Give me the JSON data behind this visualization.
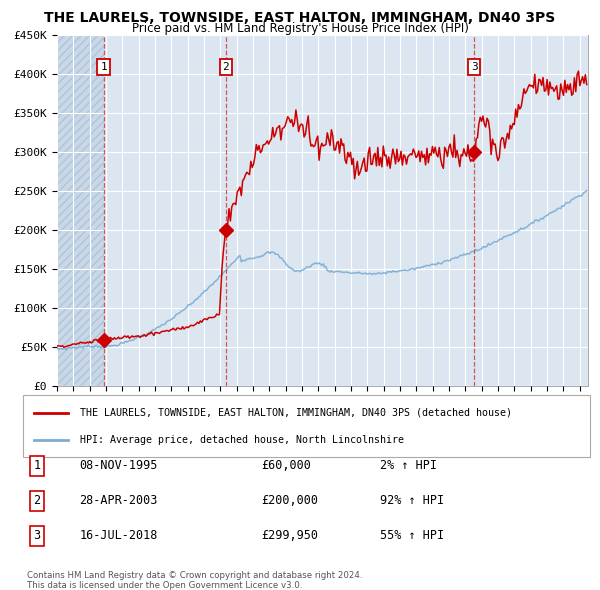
{
  "title": "THE LAURELS, TOWNSIDE, EAST HALTON, IMMINGHAM, DN40 3PS",
  "subtitle": "Price paid vs. HM Land Registry's House Price Index (HPI)",
  "ylim": [
    0,
    450000
  ],
  "yticks": [
    0,
    50000,
    100000,
    150000,
    200000,
    250000,
    300000,
    350000,
    400000,
    450000
  ],
  "ytick_labels": [
    "£0",
    "£50K",
    "£100K",
    "£150K",
    "£200K",
    "£250K",
    "£300K",
    "£350K",
    "£400K",
    "£450K"
  ],
  "background_color": "#dce6f1",
  "hatch_edgecolor": "#b8c8dc",
  "grid_color": "#ffffff",
  "red_line_color": "#cc0000",
  "blue_line_color": "#7aadd4",
  "sale_marker_color": "#cc0000",
  "dashed_line_color": "#cc3333",
  "sale1_date": 1995.854,
  "sale1_price": 60000,
  "sale2_date": 2003.323,
  "sale2_price": 200000,
  "sale3_date": 2018.538,
  "sale3_price": 299950,
  "xlim_start": 1993.0,
  "xlim_end": 2025.5,
  "xticks": [
    1993,
    1994,
    1995,
    1996,
    1997,
    1998,
    1999,
    2000,
    2001,
    2002,
    2003,
    2004,
    2005,
    2006,
    2007,
    2008,
    2009,
    2010,
    2011,
    2012,
    2013,
    2014,
    2015,
    2016,
    2017,
    2018,
    2019,
    2020,
    2021,
    2022,
    2023,
    2024,
    2025
  ],
  "legend_red_label": "THE LAURELS, TOWNSIDE, EAST HALTON, IMMINGHAM, DN40 3PS (detached house)",
  "legend_blue_label": "HPI: Average price, detached house, North Lincolnshire",
  "transaction_labels": [
    "1",
    "2",
    "3"
  ],
  "transaction_dates": [
    "08-NOV-1995",
    "28-APR-2003",
    "16-JUL-2018"
  ],
  "transaction_prices": [
    "£60,000",
    "£200,000",
    "£299,950"
  ],
  "transaction_hpi": [
    "2% ↑ HPI",
    "92% ↑ HPI",
    "55% ↑ HPI"
  ],
  "footer": "Contains HM Land Registry data © Crown copyright and database right 2024.\nThis data is licensed under the Open Government Licence v3.0."
}
